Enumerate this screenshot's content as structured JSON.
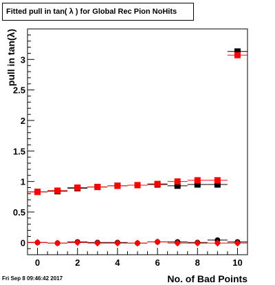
{
  "title": "Fitted pull in tan( λ ) for Global Rec Pion NoHits",
  "timestamp": "Fri Sep  8 09:46:42 2017",
  "chart_data": {
    "type": "scatter",
    "xlabel": "No. of Bad Points",
    "ylabel": "pull in tan(λ)",
    "xlim": [
      -0.5,
      10.5
    ],
    "ylim": [
      -0.2,
      3.5
    ],
    "x_ticks": [
      "0",
      "2",
      "4",
      "6",
      "8",
      "10"
    ],
    "y_ticks": [
      "0",
      "0.5",
      "1",
      "1.5",
      "2",
      "2.5",
      "3"
    ],
    "grid": false,
    "colors": {
      "black": "#000000",
      "red": "#ff0000"
    },
    "series": [
      {
        "marker": "square",
        "color": "#000000",
        "x": [
          0,
          1,
          2,
          3,
          4,
          5,
          6,
          7,
          8,
          9,
          10
        ],
        "y": [
          0.83,
          0.84,
          0.89,
          0.91,
          0.93,
          0.94,
          0.95,
          0.93,
          0.95,
          0.95,
          3.13
        ]
      },
      {
        "marker": "square",
        "color": "#ff0000",
        "x": [
          0,
          1,
          2,
          3,
          4,
          5,
          6,
          7,
          8,
          9,
          10
        ],
        "y": [
          0.83,
          0.85,
          0.9,
          0.91,
          0.93,
          0.94,
          0.96,
          1.0,
          1.02,
          1.02,
          3.07
        ]
      },
      {
        "marker": "circle",
        "color": "#000000",
        "x": [
          0,
          1,
          2,
          3,
          4,
          5,
          6,
          7,
          8,
          9,
          10
        ],
        "y": [
          0.0,
          -0.01,
          0.01,
          0.0,
          0.0,
          -0.01,
          0.01,
          0.01,
          0.0,
          0.04,
          0.01
        ]
      },
      {
        "marker": "diamond",
        "color": "#ff0000",
        "x": [
          0,
          1,
          2,
          3,
          4,
          5,
          6,
          7,
          8,
          9,
          10
        ],
        "y": [
          0.0,
          -0.01,
          0.0,
          -0.01,
          -0.01,
          -0.01,
          0.01,
          -0.01,
          -0.01,
          -0.01,
          -0.01
        ]
      }
    ]
  }
}
